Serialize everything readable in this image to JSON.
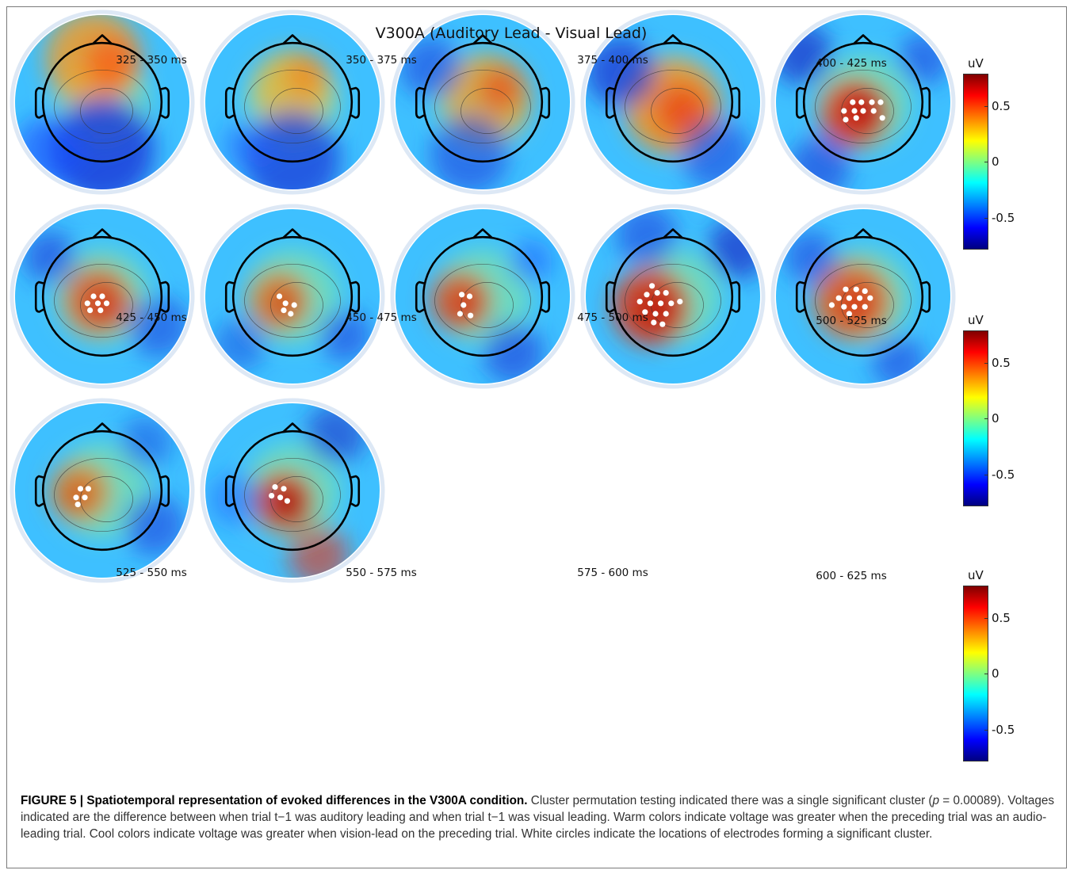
{
  "figure": {
    "title": "V300A (Auditory Lead - Visual Lead)",
    "colorbar": {
      "unit": "uV",
      "ticks": [
        "0.5",
        "0",
        "-0.5"
      ]
    },
    "rows": [
      {
        "panels": [
          {
            "label": "325 - 350 ms",
            "electrodes": []
          },
          {
            "label": "350 - 375 ms",
            "electrodes": []
          },
          {
            "label": "375 - 400 ms",
            "electrodes": []
          },
          {
            "label": "400 - 425 ms",
            "electrodes": []
          }
        ]
      },
      {
        "panels": [
          {
            "label": "425 - 450 ms",
            "electrodes": [
              [
                -0.12,
                0.0
              ],
              [
                -0.02,
                0.0
              ],
              [
                0.1,
                0.0
              ],
              [
                0.2,
                0.0
              ],
              [
                -0.22,
                0.1
              ],
              [
                -0.1,
                0.1
              ],
              [
                0.0,
                0.1
              ],
              [
                0.12,
                0.1
              ],
              [
                -0.2,
                0.2
              ],
              [
                -0.08,
                0.18
              ],
              [
                0.22,
                0.18
              ]
            ]
          },
          {
            "label": "450 - 475 ms",
            "electrodes": [
              [
                -0.1,
                0.0
              ],
              [
                0.0,
                0.0
              ],
              [
                -0.17,
                0.08
              ],
              [
                -0.05,
                0.08
              ],
              [
                0.05,
                0.08
              ],
              [
                -0.14,
                0.16
              ],
              [
                -0.02,
                0.16
              ]
            ]
          },
          {
            "label": "475 - 500 ms",
            "electrodes": [
              [
                -0.15,
                0.0
              ],
              [
                -0.08,
                0.08
              ],
              [
                0.02,
                0.1
              ],
              [
                -0.1,
                0.16
              ],
              [
                -0.02,
                0.2
              ]
            ]
          },
          {
            "label": "500 - 525 ms",
            "electrodes": [
              [
                -0.24,
                -0.02
              ],
              [
                -0.15,
                0.0
              ],
              [
                -0.22,
                0.1
              ],
              [
                -0.26,
                0.2
              ],
              [
                -0.14,
                0.22
              ]
            ]
          }
        ]
      },
      {
        "panels": [
          {
            "label": "525 - 550 ms",
            "electrodes": [
              [
                -0.24,
                -0.12
              ],
              [
                -0.3,
                -0.02
              ],
              [
                -0.18,
                -0.04
              ],
              [
                -0.08,
                -0.04
              ],
              [
                -0.38,
                0.06
              ],
              [
                -0.26,
                0.08
              ],
              [
                -0.14,
                0.08
              ],
              [
                -0.02,
                0.08
              ],
              [
                0.08,
                0.06
              ],
              [
                -0.32,
                0.18
              ],
              [
                -0.2,
                0.2
              ],
              [
                -0.08,
                0.2
              ],
              [
                -0.22,
                0.3
              ],
              [
                -0.12,
                0.32
              ]
            ]
          },
          {
            "label": "550 - 575 ms",
            "electrodes": [
              [
                -0.2,
                -0.08
              ],
              [
                -0.08,
                -0.08
              ],
              [
                0.02,
                -0.06
              ],
              [
                -0.28,
                0.02
              ],
              [
                -0.16,
                0.02
              ],
              [
                -0.04,
                0.02
              ],
              [
                0.08,
                0.02
              ],
              [
                -0.36,
                0.1
              ],
              [
                -0.22,
                0.12
              ],
              [
                -0.1,
                0.12
              ],
              [
                0.02,
                0.12
              ],
              [
                -0.16,
                0.2
              ]
            ]
          },
          {
            "label": "575 - 600 ms",
            "electrodes": [
              [
                -0.25,
                -0.02
              ],
              [
                -0.16,
                -0.02
              ],
              [
                -0.3,
                0.08
              ],
              [
                -0.2,
                0.08
              ],
              [
                -0.28,
                0.16
              ]
            ]
          },
          {
            "label": "600 - 625 ms",
            "electrodes": [
              [
                -0.2,
                -0.04
              ],
              [
                -0.1,
                -0.02
              ],
              [
                -0.24,
                0.06
              ],
              [
                -0.14,
                0.08
              ],
              [
                -0.06,
                0.12
              ]
            ]
          }
        ]
      }
    ]
  },
  "caption": {
    "label": "FIGURE 5 | Spatiotemporal representation of evoked differences in the V300A condition.",
    "text_1": " Cluster permutation testing indicated there was a single significant cluster (",
    "p_symbol": "p",
    "text_2": " = 0.00089). Voltages indicated are the difference between when trial t−1 was auditory leading and when trial t−1 was visual leading. Warm colors indicate voltage was greater when the preceding trial was an audio-leading trial. Cool colors indicate voltage was greater when vision-lead on the preceding trial. White circles indicate the locations of electrodes forming a significant cluster."
  }
}
